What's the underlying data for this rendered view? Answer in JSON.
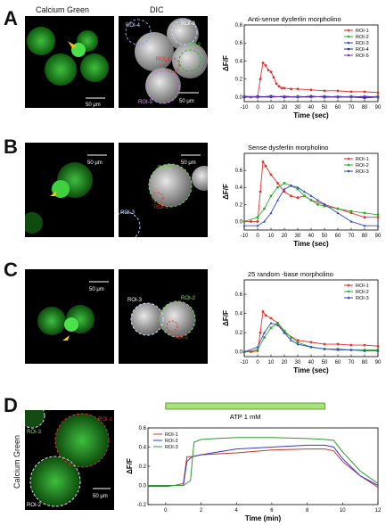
{
  "column_headers": {
    "calcium": "Calcium Green",
    "dic": "DIC"
  },
  "panels": [
    {
      "letter": "A",
      "title": "Anti-sense dysferlin morpholino",
      "scale": "50 μm",
      "dic_scale": "50 μm",
      "roi_labels": [
        "ROI-4",
        "ROI-3",
        "ROI-1",
        "ROI-2",
        "ROI-5"
      ]
    },
    {
      "letter": "B",
      "title": "Sense dysferlin morpholino",
      "scale": "50 μm",
      "dic_scale": "50 μm",
      "roi_labels": [
        "ROI-2",
        "ROI-3",
        "ROI-1"
      ]
    },
    {
      "letter": "C",
      "title": "25 random -base morpholino",
      "scale": "50 μm",
      "dic_scale": "50 μm",
      "roi_labels": [
        "ROI-3",
        "ROI-2",
        "ROI-1"
      ]
    },
    {
      "letter": "D",
      "side_label": "Calcium Green",
      "scale": "50 μm",
      "roi_labels": [
        "ROI-1",
        "ROI-3",
        "ROI-2"
      ],
      "atp_label": "ATP 1 mM"
    }
  ],
  "colors": {
    "roi1": "#e0312d",
    "roi2": "#2eab2e",
    "roi3": "#2e49c8",
    "roi4": "#1e2a8a",
    "roi5": "#7a2fc8",
    "d_roi1": "#c0392b",
    "d_roi2": "#3a3ac8",
    "d_roi3": "#2e9a2e",
    "atp_bar": "#a8e07a",
    "atp_border": "#4a8a2a"
  },
  "chart_data": [
    {
      "type": "line",
      "title": "Anti-sense dysferlin morpholino",
      "xlabel": "Time (sec)",
      "ylabel": "ΔF/F",
      "xlim": [
        -10,
        90
      ],
      "ylim": [
        -0.05,
        0.8
      ],
      "xticks": [
        -10,
        0,
        10,
        20,
        30,
        40,
        50,
        60,
        70,
        80,
        90
      ],
      "yticks": [
        0,
        0.2,
        0.4,
        0.6,
        0.8
      ],
      "ytick_labels": [
        "0.0",
        "0.2",
        "0.4",
        "0.6",
        "0.8"
      ],
      "legend_position": "top-right",
      "series": [
        {
          "name": "ROI-1",
          "color": "roi1",
          "x": [
            -10,
            -5,
            0,
            2,
            4,
            6,
            8,
            10,
            12,
            14,
            16,
            18,
            20,
            25,
            30,
            40,
            50,
            60,
            70,
            80,
            90
          ],
          "y": [
            0.01,
            0.0,
            0.01,
            0.2,
            0.38,
            0.35,
            0.3,
            0.28,
            0.22,
            0.15,
            0.12,
            0.1,
            0.1,
            0.09,
            0.09,
            0.08,
            0.07,
            0.07,
            0.06,
            0.06,
            0.05
          ]
        },
        {
          "name": "ROI-2",
          "color": "roi2",
          "x": [
            -10,
            0,
            10,
            20,
            30,
            40,
            50,
            60,
            70,
            80,
            90
          ],
          "y": [
            0.01,
            0.0,
            0.01,
            0.0,
            0.01,
            0.0,
            0.01,
            0.0,
            0.01,
            0.0,
            0.01
          ]
        },
        {
          "name": "ROI-3",
          "color": "roi3",
          "x": [
            -10,
            0,
            10,
            20,
            30,
            40,
            50,
            60,
            70,
            80,
            90
          ],
          "y": [
            0.0,
            0.01,
            0.0,
            0.01,
            0.0,
            0.01,
            0.0,
            0.01,
            0.0,
            -0.01,
            0.0
          ]
        },
        {
          "name": "ROI-4",
          "color": "roi4",
          "x": [
            -10,
            0,
            10,
            20,
            30,
            40,
            50,
            60,
            70,
            80,
            90
          ],
          "y": [
            0.0,
            0.0,
            0.01,
            0.0,
            0.0,
            0.01,
            0.0,
            0.0,
            0.0,
            0.0,
            0.0
          ]
        },
        {
          "name": "ROI-5",
          "color": "roi5",
          "x": [
            -10,
            0,
            10,
            20,
            30,
            40,
            50,
            60,
            70,
            80,
            90
          ],
          "y": [
            0.01,
            0.0,
            0.0,
            0.01,
            0.0,
            0.0,
            0.01,
            0.0,
            0.0,
            0.01,
            0.0
          ]
        }
      ]
    },
    {
      "type": "line",
      "title": "Sense dysferlin morpholino",
      "xlabel": "Time (sec)",
      "ylabel": "ΔF/F",
      "xlim": [
        -10,
        90
      ],
      "ylim": [
        -0.1,
        0.8
      ],
      "xticks": [
        -10,
        0,
        10,
        20,
        30,
        40,
        50,
        60,
        70,
        80,
        90
      ],
      "yticks": [
        0,
        0.2,
        0.4,
        0.6
      ],
      "ytick_labels": [
        "0.0",
        "0.2",
        "0.4",
        "0.6"
      ],
      "legend_position": "top-right",
      "series": [
        {
          "name": "ROI-1",
          "color": "roi1",
          "x": [
            -10,
            -5,
            0,
            2,
            4,
            6,
            10,
            15,
            20,
            25,
            30,
            35,
            40,
            50,
            60,
            70,
            80,
            90
          ],
          "y": [
            0.0,
            0.0,
            0.0,
            0.35,
            0.7,
            0.65,
            0.55,
            0.45,
            0.35,
            0.3,
            0.28,
            0.3,
            0.25,
            0.2,
            0.15,
            0.1,
            0.05,
            0.05
          ]
        },
        {
          "name": "ROI-2",
          "color": "roi2",
          "x": [
            -10,
            0,
            5,
            10,
            15,
            20,
            25,
            30,
            35,
            40,
            45,
            50,
            60,
            70,
            80,
            90
          ],
          "y": [
            0.0,
            0.05,
            0.15,
            0.3,
            0.4,
            0.45,
            0.42,
            0.38,
            0.3,
            0.25,
            0.2,
            0.18,
            0.15,
            0.12,
            0.1,
            0.08
          ]
        },
        {
          "name": "ROI-3",
          "color": "roi3",
          "x": [
            -10,
            0,
            5,
            10,
            15,
            20,
            25,
            30,
            35,
            40,
            45,
            50,
            60,
            70,
            80,
            90
          ],
          "y": [
            -0.05,
            -0.05,
            0.0,
            0.1,
            0.25,
            0.38,
            0.42,
            0.4,
            0.35,
            0.3,
            0.25,
            0.2,
            0.1,
            0.0,
            -0.05,
            -0.05
          ]
        }
      ]
    },
    {
      "type": "line",
      "title": "25 random -base morpholino",
      "xlabel": "Time (sec)",
      "ylabel": "ΔF/F",
      "xlim": [
        -10,
        90
      ],
      "ylim": [
        -0.05,
        0.75
      ],
      "xticks": [
        -10,
        0,
        10,
        20,
        30,
        40,
        50,
        60,
        70,
        80,
        90
      ],
      "yticks": [
        0,
        0.2,
        0.4,
        0.6
      ],
      "ytick_labels": [
        "0.0",
        "0.2",
        "0.4",
        "0.6"
      ],
      "legend_position": "top-right",
      "series": [
        {
          "name": "ROI-1",
          "color": "roi1",
          "x": [
            -10,
            -5,
            0,
            2,
            4,
            6,
            10,
            15,
            20,
            30,
            40,
            50,
            60,
            70,
            80,
            90
          ],
          "y": [
            0.0,
            0.0,
            0.01,
            0.2,
            0.42,
            0.38,
            0.35,
            0.3,
            0.2,
            0.12,
            0.1,
            0.08,
            0.08,
            0.07,
            0.07,
            0.06
          ]
        },
        {
          "name": "ROI-2",
          "color": "roi2",
          "x": [
            -10,
            0,
            5,
            10,
            15,
            20,
            25,
            30,
            40,
            50,
            60,
            70,
            80,
            90
          ],
          "y": [
            0.0,
            0.02,
            0.15,
            0.25,
            0.3,
            0.22,
            0.15,
            0.1,
            0.05,
            0.03,
            0.03,
            0.02,
            0.02,
            0.02
          ]
        },
        {
          "name": "ROI-3",
          "color": "roi3",
          "x": [
            -10,
            0,
            5,
            10,
            15,
            20,
            25,
            30,
            40,
            50,
            60,
            70,
            80,
            90
          ],
          "y": [
            0.0,
            0.05,
            0.2,
            0.3,
            0.28,
            0.2,
            0.12,
            0.08,
            0.05,
            0.03,
            0.02,
            0.02,
            0.01,
            0.01
          ]
        }
      ]
    },
    {
      "type": "line",
      "xlabel": "Time (min)",
      "ylabel": "ΔF/F",
      "xlim": [
        -1,
        12
      ],
      "ylim": [
        -0.2,
        0.6
      ],
      "xticks": [
        0,
        2,
        4,
        6,
        8,
        10,
        12
      ],
      "yticks": [
        -0.2,
        0,
        0.2,
        0.4,
        0.6
      ],
      "ytick_labels": [
        "-0.2",
        "0.0",
        "0.2",
        "0.4",
        "0.6"
      ],
      "legend_position": "top-left",
      "series": [
        {
          "name": "ROI-1",
          "color": "d_roi1",
          "x": [
            -1,
            0,
            0.5,
            1,
            1.2,
            1.5,
            2,
            4,
            6,
            8,
            9,
            9.5,
            10,
            11,
            12
          ],
          "y": [
            0.0,
            0.0,
            0.0,
            0.02,
            0.3,
            0.3,
            0.32,
            0.34,
            0.37,
            0.38,
            0.38,
            0.36,
            0.25,
            0.1,
            -0.02
          ]
        },
        {
          "name": "ROI-2",
          "color": "d_roi2",
          "x": [
            -1,
            0,
            0.5,
            1,
            1.2,
            1.5,
            2,
            4,
            6,
            8,
            9,
            9.5,
            10,
            11,
            12
          ],
          "y": [
            -0.01,
            -0.01,
            0.0,
            0.0,
            0.25,
            0.3,
            0.32,
            0.38,
            0.4,
            0.42,
            0.42,
            0.4,
            0.28,
            0.1,
            0.0
          ]
        },
        {
          "name": "ROI-3",
          "color": "d_roi3",
          "x": [
            -1,
            0,
            0.5,
            1,
            1.4,
            1.6,
            2,
            4,
            6,
            8,
            9,
            9.5,
            10,
            11,
            12
          ],
          "y": [
            0.0,
            0.0,
            0.0,
            0.0,
            0.05,
            0.45,
            0.48,
            0.5,
            0.5,
            0.49,
            0.48,
            0.47,
            0.35,
            0.15,
            0.02
          ]
        }
      ],
      "annotations": [
        {
          "text": "ATP 1 mM",
          "x_start": 0,
          "x_end": 9
        }
      ]
    }
  ]
}
